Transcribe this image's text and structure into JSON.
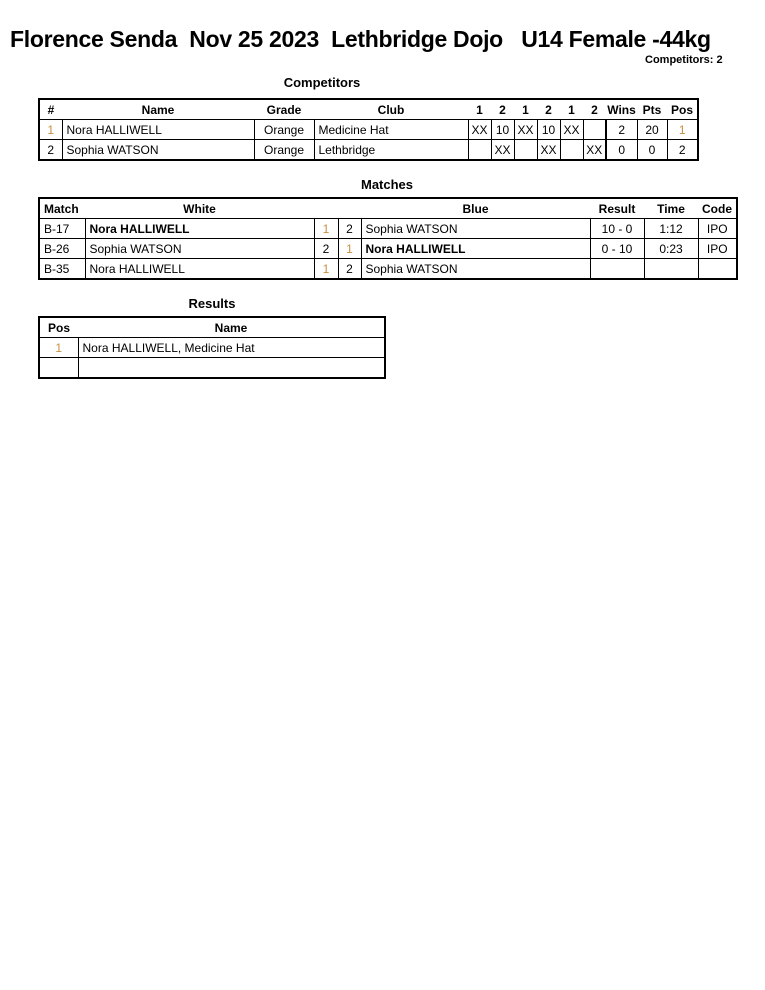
{
  "header": {
    "title": "Florence Senda  Nov 25 2023  Lethbridge Dojo   U14 Female -44kg",
    "competitors_count": "Competitors: 2"
  },
  "competitors": {
    "title": "Competitors",
    "columns": [
      "#",
      "Name",
      "Grade",
      "Club",
      "1",
      "2",
      "1",
      "2",
      "1",
      "2",
      "Wins",
      "Pts",
      "Pos"
    ],
    "rows": [
      {
        "num": "1",
        "name": "Nora HALLIWELL",
        "grade": "Orange",
        "club": "Medicine Hat",
        "scores": [
          "XX",
          "10",
          "XX",
          "10",
          "XX",
          ""
        ],
        "wins": "2",
        "pts": "20",
        "pos": "1"
      },
      {
        "num": "2",
        "name": "Sophia WATSON",
        "grade": "Orange",
        "club": "Lethbridge",
        "scores": [
          "",
          "XX",
          "",
          "XX",
          "",
          "XX"
        ],
        "wins": "0",
        "pts": "0",
        "pos": "2"
      }
    ]
  },
  "matches": {
    "title": "Matches",
    "columns": [
      "Match",
      "White",
      "Blue",
      "Result",
      "Time",
      "Code"
    ],
    "rows": [
      {
        "match": "B-17",
        "white": "Nora HALLIWELL",
        "white_num": "1",
        "blue_num": "2",
        "blue": "Sophia WATSON",
        "result": "10 - 0",
        "time": "1:12",
        "code": "IPO",
        "winner": "white"
      },
      {
        "match": "B-26",
        "white": "Sophia WATSON",
        "white_num": "2",
        "blue_num": "1",
        "blue": "Nora HALLIWELL",
        "result": "0 - 10",
        "time": "0:23",
        "code": "IPO",
        "winner": "blue"
      },
      {
        "match": "B-35",
        "white": "Nora HALLIWELL",
        "white_num": "1",
        "blue_num": "2",
        "blue": "Sophia WATSON",
        "result": "",
        "time": "",
        "code": "",
        "winner": ""
      }
    ]
  },
  "results": {
    "title": "Results",
    "columns": [
      "Pos",
      "Name"
    ],
    "rows": [
      {
        "pos": "1",
        "name": "Nora HALLIWELL, Medicine Hat"
      },
      {
        "pos": "",
        "name": ""
      }
    ]
  },
  "colors": {
    "first_place_number": "#c89040"
  }
}
